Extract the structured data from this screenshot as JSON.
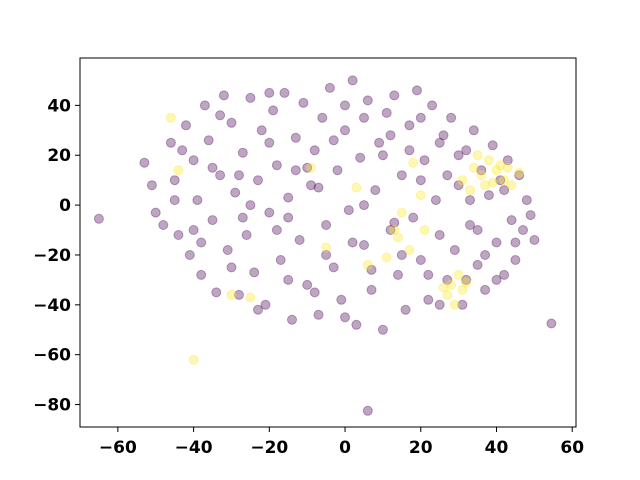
{
  "chart_data": {
    "type": "scatter",
    "title": "",
    "xlabel": "",
    "ylabel": "",
    "xlim": [
      -70,
      61
    ],
    "ylim": [
      -89,
      59
    ],
    "xticks": [
      -60,
      -40,
      -20,
      0,
      20,
      40,
      60
    ],
    "yticks": [
      -80,
      -60,
      -40,
      -20,
      0,
      20,
      40
    ],
    "xtick_labels": [
      "−60",
      "−40",
      "−20",
      "0",
      "20",
      "40",
      "60"
    ],
    "ytick_labels": [
      "−80",
      "−60",
      "−40",
      "−20",
      "0",
      "20",
      "40"
    ],
    "grid": false,
    "legend": "none",
    "point_alpha": 0.35,
    "colors": {
      "class_0": "#440154",
      "class_1": "#fde725"
    },
    "series": [
      {
        "values_description_note": "",
        "class": 0,
        "points": [
          [
            -65,
            -5.5
          ],
          [
            6,
            -82.5
          ],
          [
            54.5,
            -47.5
          ],
          [
            -53,
            17
          ],
          [
            -51,
            8
          ],
          [
            -50,
            -3
          ],
          [
            -48,
            -8
          ],
          [
            -46,
            25
          ],
          [
            -45,
            10
          ],
          [
            -44,
            -12
          ],
          [
            -42,
            32
          ],
          [
            -41,
            -20
          ],
          [
            -40,
            18
          ],
          [
            -39,
            2
          ],
          [
            -38,
            -28
          ],
          [
            -37,
            40
          ],
          [
            -36,
            26
          ],
          [
            -35,
            -6
          ],
          [
            -34,
            -35
          ],
          [
            -33,
            12
          ],
          [
            -32,
            44
          ],
          [
            -31,
            -18
          ],
          [
            -30,
            33
          ],
          [
            -29,
            5
          ],
          [
            -28,
            -36
          ],
          [
            -27,
            21
          ],
          [
            -26,
            -12
          ],
          [
            -25,
            43
          ],
          [
            -24,
            -27
          ],
          [
            -23,
            10
          ],
          [
            -22,
            30
          ],
          [
            -21,
            -40
          ],
          [
            -20,
            -3
          ],
          [
            -19,
            38
          ],
          [
            -18,
            16
          ],
          [
            -17,
            -22
          ],
          [
            -16,
            45
          ],
          [
            -15,
            3
          ],
          [
            -14,
            -46
          ],
          [
            -13,
            27
          ],
          [
            -12,
            -14
          ],
          [
            -11,
            41
          ],
          [
            -10,
            -32
          ],
          [
            -9,
            8
          ],
          [
            -8,
            22
          ],
          [
            -7,
            -44
          ],
          [
            -6,
            35
          ],
          [
            -5,
            -8
          ],
          [
            -4,
            47
          ],
          [
            -3,
            -25
          ],
          [
            -2,
            14
          ],
          [
            -1,
            -38
          ],
          [
            0,
            30
          ],
          [
            1,
            -2
          ],
          [
            2,
            50
          ],
          [
            3,
            -48
          ],
          [
            4,
            19
          ],
          [
            5,
            -16
          ],
          [
            6,
            42
          ],
          [
            7,
            -34
          ],
          [
            8,
            6
          ],
          [
            9,
            25
          ],
          [
            10,
            -50
          ],
          [
            11,
            37
          ],
          [
            12,
            -10
          ],
          [
            13,
            44
          ],
          [
            14,
            -28
          ],
          [
            15,
            12
          ],
          [
            16,
            -42
          ],
          [
            17,
            32
          ],
          [
            18,
            -5
          ],
          [
            19,
            46
          ],
          [
            20,
            -22
          ],
          [
            21,
            18
          ],
          [
            22,
            -38
          ],
          [
            23,
            40
          ],
          [
            24,
            2
          ],
          [
            25,
            -12
          ],
          [
            26,
            28
          ],
          [
            27,
            -30
          ],
          [
            28,
            35
          ],
          [
            29,
            -18
          ],
          [
            30,
            8
          ],
          [
            31,
            -40
          ],
          [
            32,
            22
          ],
          [
            33,
            -8
          ],
          [
            34,
            30
          ],
          [
            35,
            -24
          ],
          [
            36,
            14
          ],
          [
            37,
            -34
          ],
          [
            38,
            4
          ],
          [
            39,
            24
          ],
          [
            40,
            -15
          ],
          [
            41,
            10
          ],
          [
            42,
            -28
          ],
          [
            43,
            18
          ],
          [
            44,
            -6
          ],
          [
            45,
            -22
          ],
          [
            46,
            12
          ],
          [
            47,
            -10
          ],
          [
            48,
            2
          ],
          [
            49,
            -4
          ],
          [
            50,
            -14
          ],
          [
            -45,
            2
          ],
          [
            -43,
            22
          ],
          [
            -30,
            -25
          ],
          [
            -25,
            0
          ],
          [
            -20,
            25
          ],
          [
            -15,
            -30
          ],
          [
            -10,
            15
          ],
          [
            -5,
            -20
          ],
          [
            0,
            40
          ],
          [
            5,
            0
          ],
          [
            10,
            20
          ],
          [
            15,
            -20
          ],
          [
            20,
            35
          ],
          [
            25,
            -40
          ],
          [
            30,
            20
          ],
          [
            35,
            -10
          ],
          [
            -38,
            -15
          ],
          [
            -28,
            12
          ],
          [
            -18,
            -10
          ],
          [
            -8,
            -35
          ],
          [
            2,
            -15
          ],
          [
            12,
            28
          ],
          [
            22,
            -28
          ],
          [
            32,
            -30
          ],
          [
            42,
            6
          ],
          [
            -33,
            36
          ],
          [
            -23,
            -42
          ],
          [
            -13,
            14
          ],
          [
            -3,
            26
          ],
          [
            7,
            -26
          ],
          [
            17,
            22
          ],
          [
            27,
            12
          ],
          [
            37,
            -20
          ],
          [
            -40,
            -10
          ],
          [
            -20,
            45
          ],
          [
            0,
            -45
          ],
          [
            20,
            10
          ],
          [
            40,
            -30
          ],
          [
            -35,
            15
          ],
          [
            -15,
            -5
          ],
          [
            5,
            35
          ],
          [
            25,
            25
          ],
          [
            45,
            -15
          ],
          [
            -27,
            -5
          ],
          [
            -7,
            7
          ],
          [
            13,
            -7
          ],
          [
            33,
            2
          ]
        ]
      },
      {
        "class": 1,
        "points": [
          [
            -40,
            -62
          ],
          [
            -46,
            35
          ],
          [
            -25,
            -37
          ],
          [
            -9,
            15
          ],
          [
            3,
            7
          ],
          [
            14,
            -13
          ],
          [
            17,
            -18
          ],
          [
            6,
            -24
          ],
          [
            -5,
            -17
          ],
          [
            18,
            17
          ],
          [
            21,
            -10
          ],
          [
            15,
            -3
          ],
          [
            31,
            10
          ],
          [
            34,
            15
          ],
          [
            36,
            12
          ],
          [
            38,
            18
          ],
          [
            40,
            14
          ],
          [
            42,
            10
          ],
          [
            44,
            8
          ],
          [
            46,
            13
          ],
          [
            37,
            8
          ],
          [
            41,
            16
          ],
          [
            33,
            6
          ],
          [
            39,
            9
          ],
          [
            30,
            -28
          ],
          [
            28,
            -32
          ],
          [
            32,
            -31
          ],
          [
            26,
            -33
          ],
          [
            29,
            -40
          ],
          [
            31,
            -34
          ],
          [
            -44,
            14
          ],
          [
            11,
            -21
          ],
          [
            13,
            -10
          ],
          [
            20,
            4
          ],
          [
            35,
            20
          ],
          [
            43,
            15
          ],
          [
            27,
            -36
          ],
          [
            -30,
            -36
          ]
        ]
      }
    ]
  }
}
